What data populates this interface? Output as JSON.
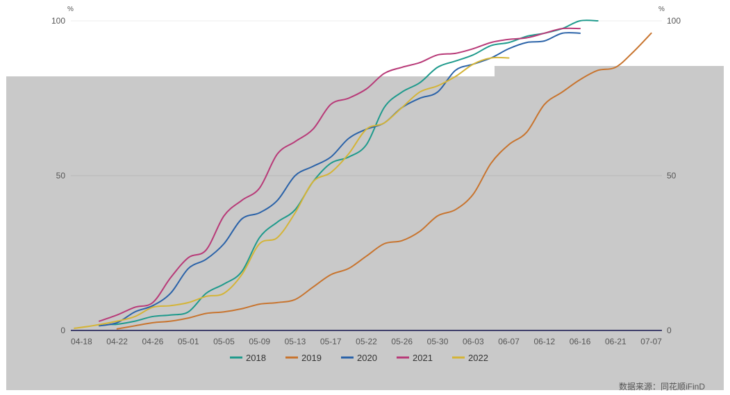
{
  "chart_data": {
    "type": "line",
    "y_unit_left": "%",
    "y_unit_right": "%",
    "ylim": [
      0,
      100
    ],
    "y_ticks": [
      0,
      50,
      100
    ],
    "grid": true,
    "legend_position": "bottom",
    "categories": [
      "04-18",
      "04-22",
      "04-26",
      "05-01",
      "05-05",
      "05-09",
      "05-13",
      "05-17",
      "05-22",
      "05-26",
      "05-30",
      "06-03",
      "06-07",
      "06-12",
      "06-16",
      "06-21",
      "07-07"
    ],
    "x_domain": [
      -0.3,
      16.3
    ],
    "series": [
      {
        "name": "2018",
        "color": "#1e9a8c",
        "points": [
          [
            0.8,
            2
          ],
          [
            1,
            2
          ],
          [
            1.5,
            3
          ],
          [
            2,
            4.5
          ],
          [
            2.5,
            5
          ],
          [
            3,
            6
          ],
          [
            3.5,
            12
          ],
          [
            4,
            15
          ],
          [
            4.5,
            19
          ],
          [
            5,
            30
          ],
          [
            5.5,
            35
          ],
          [
            6,
            39
          ],
          [
            6.5,
            48
          ],
          [
            7,
            54
          ],
          [
            7.5,
            56
          ],
          [
            8,
            60
          ],
          [
            8.5,
            72
          ],
          [
            9,
            77
          ],
          [
            9.5,
            80
          ],
          [
            10,
            85
          ],
          [
            10.5,
            87
          ],
          [
            11,
            89
          ],
          [
            11.5,
            92
          ],
          [
            12,
            93
          ],
          [
            12.5,
            95
          ],
          [
            13,
            96
          ],
          [
            13.5,
            97.5
          ],
          [
            14,
            100
          ],
          [
            14.5,
            100
          ]
        ]
      },
      {
        "name": "2019",
        "color": "#c8742e",
        "points": [
          [
            1,
            0.5
          ],
          [
            1.5,
            1.5
          ],
          [
            2,
            2.5
          ],
          [
            2.5,
            3
          ],
          [
            3,
            4
          ],
          [
            3.5,
            5.5
          ],
          [
            4,
            6
          ],
          [
            4.5,
            7
          ],
          [
            5,
            8.5
          ],
          [
            5.5,
            9
          ],
          [
            6,
            10
          ],
          [
            6.5,
            14
          ],
          [
            7,
            18
          ],
          [
            7.5,
            20
          ],
          [
            8,
            24
          ],
          [
            8.5,
            28
          ],
          [
            9,
            29
          ],
          [
            9.5,
            32
          ],
          [
            10,
            37
          ],
          [
            10.5,
            39
          ],
          [
            11,
            44
          ],
          [
            11.5,
            54
          ],
          [
            12,
            60
          ],
          [
            12.5,
            64
          ],
          [
            13,
            73
          ],
          [
            13.5,
            77
          ],
          [
            14,
            81
          ],
          [
            14.5,
            84
          ],
          [
            15,
            85
          ],
          [
            15.5,
            90
          ],
          [
            16,
            96
          ]
        ]
      },
      {
        "name": "2020",
        "color": "#2a62a8",
        "points": [
          [
            0.5,
            1.5
          ],
          [
            1,
            2.5
          ],
          [
            1.5,
            6
          ],
          [
            2,
            8
          ],
          [
            2.5,
            12
          ],
          [
            3,
            20
          ],
          [
            3.5,
            23
          ],
          [
            4,
            28
          ],
          [
            4.5,
            36
          ],
          [
            5,
            38
          ],
          [
            5.5,
            42
          ],
          [
            6,
            50
          ],
          [
            6.5,
            53
          ],
          [
            7,
            56
          ],
          [
            7.5,
            62
          ],
          [
            8,
            65
          ],
          [
            8.5,
            67
          ],
          [
            9,
            72
          ],
          [
            9.5,
            75
          ],
          [
            10,
            77
          ],
          [
            10.5,
            84
          ],
          [
            11,
            86
          ],
          [
            11.5,
            88
          ],
          [
            12,
            91
          ],
          [
            12.5,
            93
          ],
          [
            13,
            93.5
          ],
          [
            13.5,
            96
          ],
          [
            14,
            96
          ]
        ]
      },
      {
        "name": "2021",
        "color": "#b83a78",
        "points": [
          [
            0.5,
            3
          ],
          [
            1,
            5
          ],
          [
            1.5,
            7.5
          ],
          [
            2,
            9
          ],
          [
            2.5,
            17
          ],
          [
            3,
            23.5
          ],
          [
            3.5,
            26
          ],
          [
            4,
            37
          ],
          [
            4.5,
            42
          ],
          [
            5,
            46
          ],
          [
            5.5,
            57
          ],
          [
            6,
            61
          ],
          [
            6.5,
            65
          ],
          [
            7,
            73
          ],
          [
            7.5,
            75
          ],
          [
            8,
            78
          ],
          [
            8.5,
            83
          ],
          [
            9,
            85
          ],
          [
            9.5,
            86.5
          ],
          [
            10,
            89
          ],
          [
            10.5,
            89.5
          ],
          [
            11,
            91
          ],
          [
            11.5,
            93
          ],
          [
            12,
            94
          ],
          [
            12.5,
            94.5
          ],
          [
            13,
            96
          ],
          [
            13.5,
            97.5
          ],
          [
            14,
            97.5
          ]
        ]
      },
      {
        "name": "2022",
        "color": "#d4b437",
        "points": [
          [
            -0.2,
            0.7
          ],
          [
            0.3,
            1.5
          ],
          [
            1,
            3
          ],
          [
            1.5,
            4.5
          ],
          [
            2,
            7.5
          ],
          [
            2.5,
            8
          ],
          [
            3,
            9
          ],
          [
            3.5,
            11
          ],
          [
            4,
            12
          ],
          [
            4.5,
            18
          ],
          [
            5,
            28
          ],
          [
            5.5,
            30
          ],
          [
            6,
            38
          ],
          [
            6.5,
            48
          ],
          [
            7,
            51
          ],
          [
            7.5,
            57
          ],
          [
            8,
            65
          ],
          [
            8.5,
            67
          ],
          [
            9,
            72
          ],
          [
            9.5,
            77
          ],
          [
            10,
            79
          ],
          [
            10.5,
            82
          ],
          [
            11,
            86
          ],
          [
            11.5,
            88
          ],
          [
            12,
            88
          ]
        ]
      }
    ]
  },
  "source_label": "数据来源：同花顺iFinD"
}
